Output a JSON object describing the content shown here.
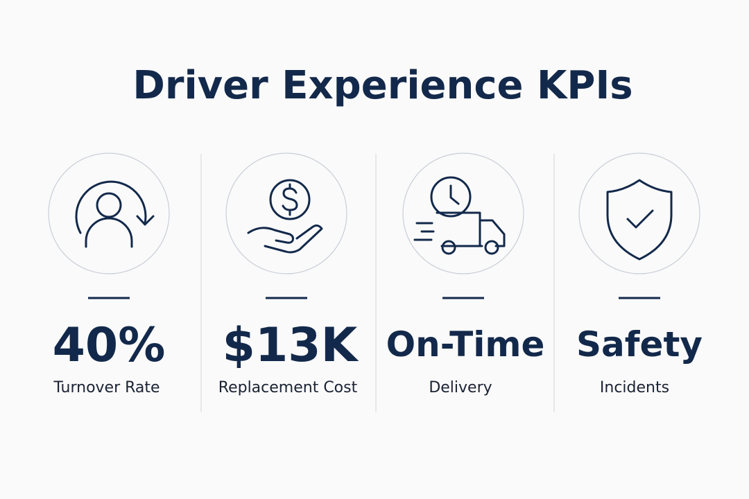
{
  "header": {
    "title": "Driver Experience KPIs"
  },
  "kpis": [
    {
      "value": "40%",
      "label": "Turnover Rate"
    },
    {
      "value": "$13K",
      "label": "Replacement Cost"
    },
    {
      "value": "On-Time",
      "label": "Delivery"
    },
    {
      "value": "Safety",
      "label": "Incidents"
    }
  ]
}
